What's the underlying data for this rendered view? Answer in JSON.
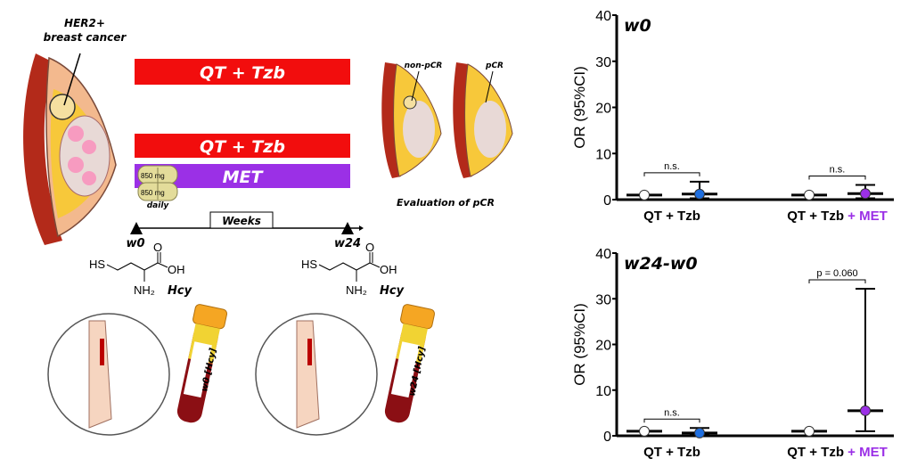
{
  "illustration": {
    "tumor_label_line1": "HER2+",
    "tumor_label_line2": "breast cancer",
    "arm1_bar": "QT + Tzb",
    "arm2_bar": "QT + Tzb",
    "met_bar": "MET",
    "pill_dose_1": "850 mg",
    "pill_dose_2": "850 mg",
    "pill_frequency": "daily",
    "timeline_label": "Weeks",
    "start_label": "w0",
    "end_label": "w24",
    "molecule_label": "Hcy",
    "molecule_sh": "HS",
    "molecule_oh": "OH",
    "molecule_o": "O",
    "molecule_nh2": "NH₂",
    "non_pcr_label": "non-pCR",
    "pcr_label": "pCR",
    "evaluation_label": "Evaluation of pCR",
    "tube1_label": "w0 [Hcy]",
    "tube2_label": "w24 [Hcy]",
    "colors": {
      "red": "#f20d0d",
      "purple": "#9b30e6",
      "blue": "#1f6fe0"
    }
  },
  "chart_data": [
    {
      "type": "scatter",
      "title": "w0",
      "ylabel": "OR (95%CI)",
      "ylim": [
        0,
        40
      ],
      "yticks": [
        "0",
        "10",
        "20",
        "30",
        "40"
      ],
      "groups": [
        {
          "label": "QT + Tzb",
          "label_extra": "",
          "reference": {
            "value": 1,
            "fill": "#ffffff"
          },
          "estimate": {
            "value": 1.2,
            "ci_low": 0.3,
            "ci_high": 3.9,
            "fill": "#1f6fe0"
          },
          "comparison": "n.s."
        },
        {
          "label": "QT + Tzb",
          "label_extra": "+ MET",
          "reference": {
            "value": 1,
            "fill": "#ffffff"
          },
          "estimate": {
            "value": 1.3,
            "ci_low": 0.3,
            "ci_high": 3.2,
            "fill": "#9b30e6"
          },
          "comparison": "n.s."
        }
      ]
    },
    {
      "type": "scatter",
      "title": "w24-w0",
      "ylabel": "OR (95%CI)",
      "ylim": [
        0,
        40
      ],
      "yticks": [
        "0",
        "10",
        "20",
        "30",
        "40"
      ],
      "groups": [
        {
          "label": "QT + Tzb",
          "label_extra": "",
          "reference": {
            "value": 1,
            "fill": "#ffffff"
          },
          "estimate": {
            "value": 0.6,
            "ci_low": 0.3,
            "ci_high": 1.7,
            "fill": "#1f6fe0"
          },
          "comparison": "n.s."
        },
        {
          "label": "QT + Tzb",
          "label_extra": "+ MET",
          "reference": {
            "value": 1,
            "fill": "#ffffff"
          },
          "estimate": {
            "value": 5.5,
            "ci_low": 1.0,
            "ci_high": 32.2,
            "fill": "#9b30e6"
          },
          "comparison": "p = 0.060"
        }
      ]
    }
  ]
}
